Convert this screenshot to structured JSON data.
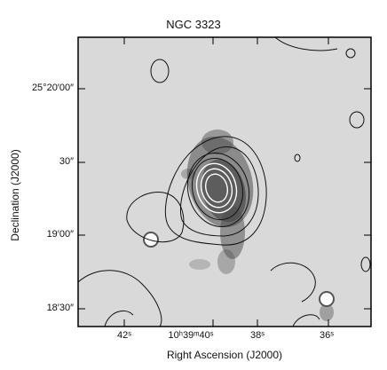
{
  "figure": {
    "title": "NGC 3323",
    "xlabel": "Right Ascension (J2000)",
    "ylabel": "Declination (J2000)",
    "y_ticks": [
      "25°20′00″",
      "30″",
      "19′00″",
      "18′30″"
    ],
    "x_ticks": [
      "42ˢ",
      "10ʰ39ᵐ40ˢ",
      "38ˢ",
      "36ˢ"
    ]
  },
  "colors": {
    "background_gray": "#d9d9d9",
    "galaxy": "#555555",
    "contour": "#111111"
  }
}
